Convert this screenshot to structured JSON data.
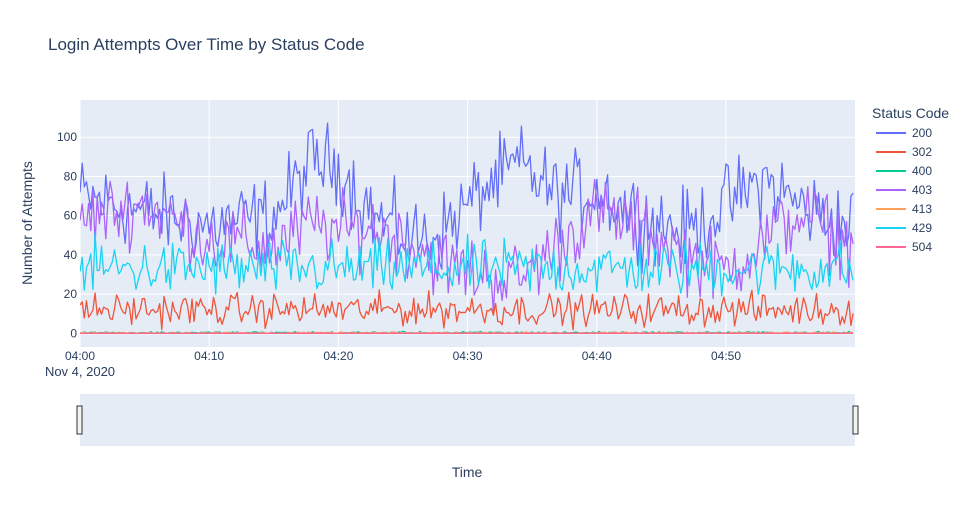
{
  "chart_data": {
    "type": "line",
    "title": "Login Attempts Over Time by Status Code",
    "xlabel": "Time",
    "ylabel": "Number of Attempts",
    "x_range": [
      "2020-11-04 04:00",
      "2020-11-04 04:59:59"
    ],
    "x_ticks": [
      "04:00",
      "04:10",
      "04:20",
      "04:30",
      "04:40",
      "04:50"
    ],
    "x_tick_sublabel": "Nov 4, 2020",
    "ylim": [
      -7,
      119
    ],
    "y_ticks": [
      0,
      20,
      40,
      60,
      80,
      100
    ],
    "grid": true,
    "legend_title": "Status Code",
    "legend_position": "right",
    "has_range_slider": true,
    "sample_interval": "10 seconds",
    "series": [
      {
        "name": "200",
        "color": "#636efa",
        "mean_profile": {
          "x": [
            "04:00",
            "04:05",
            "04:10",
            "04:15",
            "04:18",
            "04:20",
            "04:23",
            "04:26",
            "04:28",
            "04:31",
            "04:34",
            "04:37",
            "04:40",
            "04:43",
            "04:47",
            "04:50",
            "04:53",
            "04:56",
            "04:59"
          ],
          "y": [
            70,
            62,
            55,
            60,
            88,
            85,
            58,
            48,
            52,
            72,
            86,
            70,
            74,
            60,
            52,
            66,
            78,
            64,
            56
          ]
        },
        "noise": 10
      },
      {
        "name": "302",
        "color": "#EF553B",
        "mean_profile": {
          "x": [
            "04:00",
            "04:59"
          ],
          "y": [
            12,
            12
          ]
        },
        "noise": 4
      },
      {
        "name": "400",
        "color": "#00cc96",
        "mean_profile": {
          "x": [
            "04:00",
            "04:59"
          ],
          "y": [
            0.3,
            0.3
          ]
        },
        "noise": 0.3
      },
      {
        "name": "403",
        "color": "#ab63fa",
        "mean_profile": {
          "x": [
            "04:00",
            "04:05",
            "04:10",
            "04:15",
            "04:18",
            "04:20",
            "04:23",
            "04:26",
            "04:28",
            "04:31",
            "04:34",
            "04:37",
            "04:40",
            "04:43",
            "04:47",
            "04:50",
            "04:53",
            "04:56",
            "04:59"
          ],
          "y": [
            58,
            66,
            48,
            44,
            56,
            52,
            54,
            44,
            36,
            30,
            28,
            45,
            62,
            55,
            40,
            32,
            48,
            62,
            46
          ]
        },
        "noise": 9
      },
      {
        "name": "413",
        "color": "#FFA15A",
        "mean_profile": {
          "x": [
            "04:00",
            "04:59"
          ],
          "y": [
            0.2,
            0.2
          ]
        },
        "noise": 0.2
      },
      {
        "name": "429",
        "color": "#19d3f3",
        "mean_profile": {
          "x": [
            "04:00",
            "04:59"
          ],
          "y": [
            33,
            33
          ]
        },
        "noise": 7
      },
      {
        "name": "504",
        "color": "#FF6692",
        "mean_profile": {
          "x": [
            "04:00",
            "04:59"
          ],
          "y": [
            0,
            0
          ]
        },
        "noise": 0
      }
    ]
  }
}
